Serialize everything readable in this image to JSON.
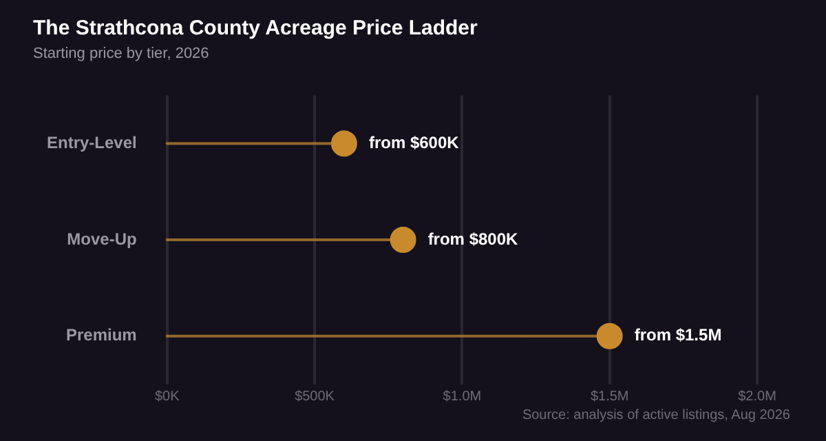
{
  "chart_data": {
    "type": "lollipop",
    "orientation": "horizontal",
    "title": "The Strathcona County Acreage Price Ladder",
    "subtitle": "Starting price by tier, 2026",
    "categories": [
      "Entry-Level",
      "Move-Up",
      "Premium"
    ],
    "values": [
      600000,
      800000,
      1500000
    ],
    "value_labels": [
      "from $600K",
      "from $800K",
      "from $1.5M"
    ],
    "color": "#c98a2e",
    "xlim": [
      0,
      2000000
    ],
    "xticks": [
      {
        "value": 0,
        "label": "$0K"
      },
      {
        "value": 500000,
        "label": "$500K"
      },
      {
        "value": 1000000,
        "label": "$1.0M"
      },
      {
        "value": 1500000,
        "label": "$1.5M"
      },
      {
        "value": 2000000,
        "label": "$2.0M"
      }
    ],
    "grid": "x",
    "legend": false,
    "marker": "circle",
    "annotations": [
      "Source: analysis of active listings, Aug 2026"
    ]
  }
}
